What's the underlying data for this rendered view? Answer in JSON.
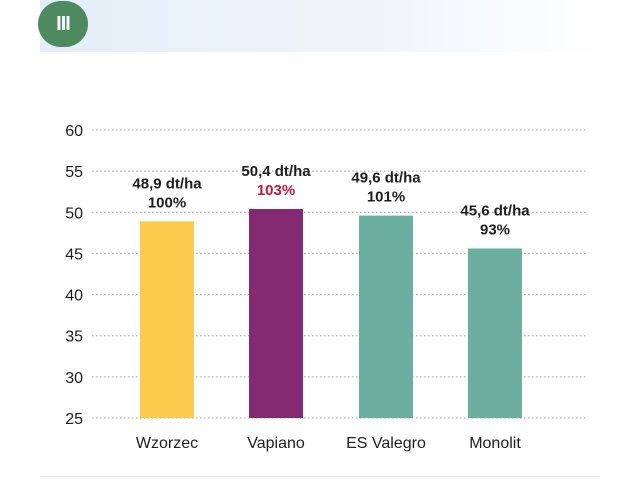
{
  "header": {
    "badge": "III"
  },
  "colors": {
    "wzorzec": "#fccb4d",
    "vapiano": "#842a73",
    "teal": "#6bafa1",
    "highlight_text": "#c3173d",
    "text": "#1e1e1e",
    "grid": "#a0a0a0"
  },
  "chart_data": {
    "type": "bar",
    "title": "",
    "xlabel": "",
    "ylabel": "",
    "ylim": [
      25,
      60
    ],
    "yticks": [
      25,
      30,
      35,
      40,
      45,
      50,
      55,
      60
    ],
    "grid": true,
    "categories": [
      "Wzorzec",
      "Vapiano",
      "ES Valegro",
      "Monolit"
    ],
    "values": [
      48.9,
      50.4,
      49.6,
      45.6
    ],
    "value_labels": [
      "48,9 dt/ha",
      "50,4 dt/ha",
      "49,6 dt/ha",
      "45,6 dt/ha"
    ],
    "percent_labels": [
      "100%",
      "103%",
      "101%",
      "93%"
    ],
    "bar_colors": [
      "#fccb4d",
      "#842a73",
      "#6bafa1",
      "#6bafa1"
    ],
    "highlight_index": 1
  }
}
